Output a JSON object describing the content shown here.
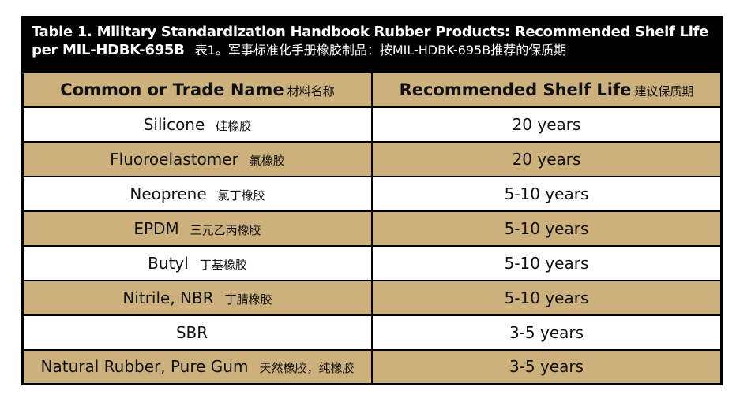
{
  "title": {
    "en": "Table 1. Military Standardization Handbook Rubber Products: Recommended Shelf Life per MIL-HDBK-695B",
    "zh": "表1。军事标准化手册橡胶制品：按MIL-HDBK-695B推荐的保质期"
  },
  "table": {
    "columns": [
      {
        "en": "Common or Trade Name",
        "zh": "材料名称"
      },
      {
        "en": "Recommended Shelf Life",
        "zh": "建议保质期"
      }
    ],
    "rows": [
      {
        "name_en": "Silicone",
        "name_zh": "硅橡胶",
        "life": "20 years"
      },
      {
        "name_en": "Fluoroelastomer",
        "name_zh": "氟橡胶",
        "life": "20 years"
      },
      {
        "name_en": "Neoprene",
        "name_zh": "氯丁橡胶",
        "life": "5-10 years"
      },
      {
        "name_en": "EPDM",
        "name_zh": "三元乙丙橡胶",
        "life": "5-10 years"
      },
      {
        "name_en": "Butyl",
        "name_zh": "丁基橡胶",
        "life": "5-10 years"
      },
      {
        "name_en": "Nitrile, NBR",
        "name_zh": "丁腈橡胶",
        "life": "5-10 years"
      },
      {
        "name_en": "SBR",
        "name_zh": "",
        "life": "3-5 years"
      },
      {
        "name_en": "Natural Rubber, Pure Gum",
        "name_zh": "天然橡胶，纯橡胶",
        "life": "3-5 years"
      }
    ]
  },
  "colors": {
    "band_bg": "#000000",
    "band_text": "#ffffff",
    "row_tan": "#cdb17d",
    "row_white": "#ffffff",
    "border": "#000000",
    "text": "#111111"
  }
}
